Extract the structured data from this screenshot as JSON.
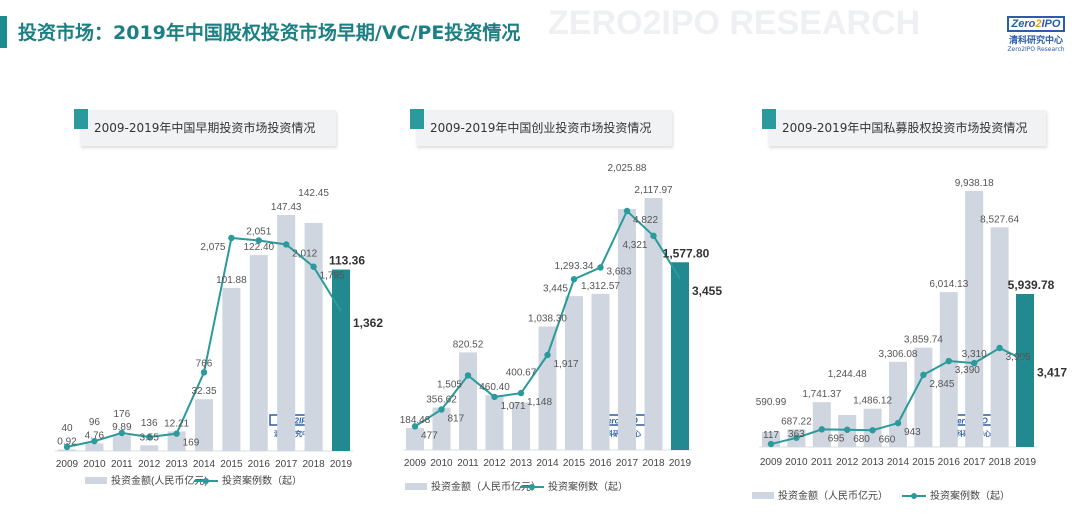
{
  "page": {
    "title": "投资市场：2019年中国股权投资市场早期/VC/PE投资情况",
    "watermark": "ZERO2IPO RESEARCH",
    "logo": {
      "brand": "Zero2IPO",
      "cn": "清科研究中心",
      "en": "Zero2IPO Research"
    }
  },
  "colors": {
    "bar": "#cfd6df",
    "bar_highlight": "#21898f",
    "line": "#2a9a9c",
    "title": "#1b7f83"
  },
  "chart_data": [
    {
      "type": "bar+line",
      "title": "2009-2019年中国早期投资市场投资情况",
      "categories": [
        "2009",
        "2010",
        "2011",
        "2012",
        "2013",
        "2014",
        "2015",
        "2016",
        "2017",
        "2018",
        "2019"
      ],
      "series": [
        {
          "name": "投资金额(人民币亿元)",
          "type": "bar",
          "values": [
            0.92,
            4.76,
            9.89,
            3.55,
            12.21,
            32.35,
            101.88,
            122.4,
            147.43,
            142.45,
            113.36
          ],
          "labels": [
            "0.92",
            "4.76",
            "9.89",
            "3.55",
            "12.21",
            "32.35",
            "101.88",
            "122.40",
            "147.43",
            "142.45",
            "113.36"
          ]
        },
        {
          "name": "投资案例数（起）",
          "type": "line",
          "values": [
            40,
            96,
            176,
            136,
            169,
            766,
            2075,
            2051,
            2012,
            1795,
            1362
          ],
          "labels": [
            "40",
            "96",
            "176",
            "136",
            "169",
            "766",
            "2,075",
            "2,051",
            "2,012",
            "1,795",
            "1,362"
          ]
        }
      ],
      "highlight_last": true,
      "grid": false
    },
    {
      "type": "bar+line",
      "title": "2009-2019年中国创业投资市场投资情况",
      "categories": [
        "2009",
        "2010",
        "2011",
        "2012",
        "2013",
        "2014",
        "2015",
        "2016",
        "2017",
        "2018",
        "2019"
      ],
      "series": [
        {
          "name": "投资金额（人民币亿元）",
          "type": "bar",
          "values": [
            184.48,
            356.62,
            820.52,
            460.4,
            400.67,
            1038.3,
            1293.34,
            1312.57,
            2025.88,
            2117.97,
            1577.8
          ],
          "labels": [
            "184.48",
            "356.62",
            "820.52",
            "460.40",
            "400.67",
            "1,038.30",
            "1,293.34",
            "1,312.57",
            "2,025.88",
            "2,117.97",
            "1,577.80"
          ]
        },
        {
          "name": "投资案例数（起）",
          "type": "line",
          "values": [
            477,
            817,
            1505,
            1071,
            1148,
            1917,
            3445,
            3683,
            4822,
            4321,
            3455
          ],
          "labels": [
            "477",
            "817",
            "1,505",
            "1,071",
            "1,148",
            "1,917",
            "3,445",
            "3,683",
            "4,822",
            "4,321",
            "3,455"
          ]
        }
      ],
      "highlight_last": true,
      "grid": false
    },
    {
      "type": "bar+line",
      "title": "2009-2019年中国私募股权投资市场投资情况",
      "categories": [
        "2009",
        "2010",
        "2011",
        "2012",
        "2013",
        "2014",
        "2015",
        "2016",
        "2017",
        "2018",
        "2019"
      ],
      "series": [
        {
          "name": "投资金额（人民币亿元）",
          "type": "bar",
          "values": [
            590.99,
            687.22,
            1741.37,
            1244.48,
            1486.12,
            3306.08,
            3859.74,
            6014.13,
            9938.18,
            8527.64,
            5939.78
          ],
          "labels": [
            "590.99",
            "687.22",
            "1,741.37",
            "1,244.48",
            "1,486.12",
            "3,306.08",
            "3,859.74",
            "6,014.13",
            "9,938.18",
            "8,527.64",
            "5,939.78"
          ]
        },
        {
          "name": "投资案例数（起）",
          "type": "line",
          "values": [
            117,
            363,
            695,
            680,
            660,
            943,
            2845,
            3390,
            3310,
            3905,
            3417
          ],
          "labels": [
            "117",
            "363",
            "695",
            "680",
            "660",
            "943",
            "2,845",
            "3,390",
            "3,310",
            "3,905",
            "3,417"
          ]
        }
      ],
      "highlight_last": true,
      "grid": false
    }
  ]
}
